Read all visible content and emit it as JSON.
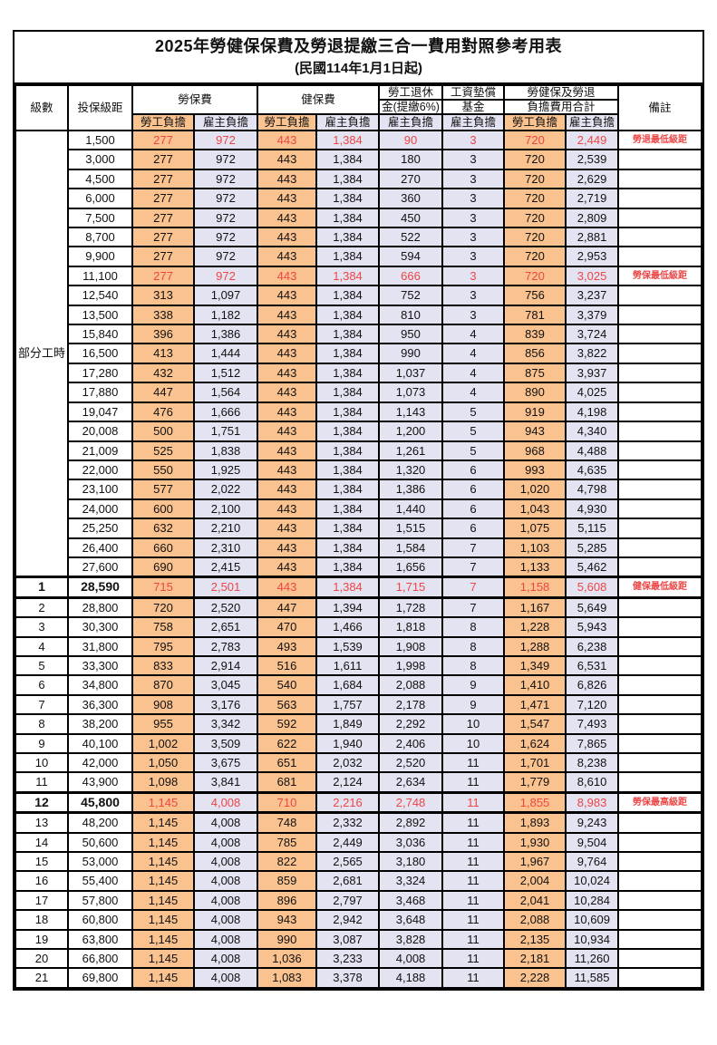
{
  "title": "2025年勞健保保費及勞退提繳三合一費用對照參考用表",
  "subtitle": "(民國114年1月1日起)",
  "colors": {
    "employee_bg": "#F9C28E",
    "employer_bg": "#E4E3F2",
    "alert_red": "#EE4545",
    "border": "#000000"
  },
  "header": {
    "level": "級數",
    "bracket": "投保級距",
    "labor_insurance": "勞保費",
    "health_insurance": "健保費",
    "pension_line1": "勞工退休",
    "pension_line2": "金(提繳6%)",
    "wage_fund_line1": "工資墊償",
    "wage_fund_line2": "基金",
    "total_line1": "勞健保及勞退",
    "total_line2": "負擔費用合計",
    "remark": "備註",
    "employee": "勞工負擔",
    "employer": "雇主負擔"
  },
  "part_time": {
    "label": "部分工時",
    "rowspan": 23
  },
  "fee_columns": [
    "labor-employee",
    "labor-employer",
    "health-employee",
    "health-employer",
    "pension-employer",
    "wage-fund-employer",
    "total-employee",
    "total-employer"
  ],
  "rows": [
    {
      "level": "",
      "bracket": "1,500",
      "fees": [
        "277",
        "972",
        "443",
        "1,384",
        "90",
        "3",
        "720",
        "2,449"
      ],
      "remark": "勞退最低級距",
      "red": true
    },
    {
      "level": "",
      "bracket": "3,000",
      "fees": [
        "277",
        "972",
        "443",
        "1,384",
        "180",
        "3",
        "720",
        "2,539"
      ],
      "remark": ""
    },
    {
      "level": "",
      "bracket": "4,500",
      "fees": [
        "277",
        "972",
        "443",
        "1,384",
        "270",
        "3",
        "720",
        "2,629"
      ],
      "remark": ""
    },
    {
      "level": "",
      "bracket": "6,000",
      "fees": [
        "277",
        "972",
        "443",
        "1,384",
        "360",
        "3",
        "720",
        "2,719"
      ],
      "remark": ""
    },
    {
      "level": "",
      "bracket": "7,500",
      "fees": [
        "277",
        "972",
        "443",
        "1,384",
        "450",
        "3",
        "720",
        "2,809"
      ],
      "remark": ""
    },
    {
      "level": "",
      "bracket": "8,700",
      "fees": [
        "277",
        "972",
        "443",
        "1,384",
        "522",
        "3",
        "720",
        "2,881"
      ],
      "remark": ""
    },
    {
      "level": "",
      "bracket": "9,900",
      "fees": [
        "277",
        "972",
        "443",
        "1,384",
        "594",
        "3",
        "720",
        "2,953"
      ],
      "remark": ""
    },
    {
      "level": "",
      "bracket": "11,100",
      "fees": [
        "277",
        "972",
        "443",
        "1,384",
        "666",
        "3",
        "720",
        "3,025"
      ],
      "remark": "勞保最低級距",
      "red": true
    },
    {
      "level": "",
      "bracket": "12,540",
      "fees": [
        "313",
        "1,097",
        "443",
        "1,384",
        "752",
        "3",
        "756",
        "3,237"
      ],
      "remark": ""
    },
    {
      "level": "",
      "bracket": "13,500",
      "fees": [
        "338",
        "1,182",
        "443",
        "1,384",
        "810",
        "3",
        "781",
        "3,379"
      ],
      "remark": ""
    },
    {
      "level": "",
      "bracket": "15,840",
      "fees": [
        "396",
        "1,386",
        "443",
        "1,384",
        "950",
        "4",
        "839",
        "3,724"
      ],
      "remark": ""
    },
    {
      "level": "",
      "bracket": "16,500",
      "fees": [
        "413",
        "1,444",
        "443",
        "1,384",
        "990",
        "4",
        "856",
        "3,822"
      ],
      "remark": ""
    },
    {
      "level": "",
      "bracket": "17,280",
      "fees": [
        "432",
        "1,512",
        "443",
        "1,384",
        "1,037",
        "4",
        "875",
        "3,937"
      ],
      "remark": ""
    },
    {
      "level": "",
      "bracket": "17,880",
      "fees": [
        "447",
        "1,564",
        "443",
        "1,384",
        "1,073",
        "4",
        "890",
        "4,025"
      ],
      "remark": ""
    },
    {
      "level": "",
      "bracket": "19,047",
      "fees": [
        "476",
        "1,666",
        "443",
        "1,384",
        "1,143",
        "5",
        "919",
        "4,198"
      ],
      "remark": ""
    },
    {
      "level": "",
      "bracket": "20,008",
      "fees": [
        "500",
        "1,751",
        "443",
        "1,384",
        "1,200",
        "5",
        "943",
        "4,340"
      ],
      "remark": ""
    },
    {
      "level": "",
      "bracket": "21,009",
      "fees": [
        "525",
        "1,838",
        "443",
        "1,384",
        "1,261",
        "5",
        "968",
        "4,488"
      ],
      "remark": ""
    },
    {
      "level": "",
      "bracket": "22,000",
      "fees": [
        "550",
        "1,925",
        "443",
        "1,384",
        "1,320",
        "6",
        "993",
        "4,635"
      ],
      "remark": ""
    },
    {
      "level": "",
      "bracket": "23,100",
      "fees": [
        "577",
        "2,022",
        "443",
        "1,384",
        "1,386",
        "6",
        "1,020",
        "4,798"
      ],
      "remark": ""
    },
    {
      "level": "",
      "bracket": "24,000",
      "fees": [
        "600",
        "2,100",
        "443",
        "1,384",
        "1,440",
        "6",
        "1,043",
        "4,930"
      ],
      "remark": ""
    },
    {
      "level": "",
      "bracket": "25,250",
      "fees": [
        "632",
        "2,210",
        "443",
        "1,384",
        "1,515",
        "6",
        "1,075",
        "5,115"
      ],
      "remark": ""
    },
    {
      "level": "",
      "bracket": "26,400",
      "fees": [
        "660",
        "2,310",
        "443",
        "1,384",
        "1,584",
        "7",
        "1,103",
        "5,285"
      ],
      "remark": ""
    },
    {
      "level": "",
      "bracket": "27,600",
      "fees": [
        "690",
        "2,415",
        "443",
        "1,384",
        "1,656",
        "7",
        "1,133",
        "5,462"
      ],
      "remark": ""
    },
    {
      "level": "1",
      "bracket": "28,590",
      "fees": [
        "715",
        "2,501",
        "443",
        "1,384",
        "1,715",
        "7",
        "1,158",
        "5,608"
      ],
      "remark": "健保最低級距",
      "red": true,
      "key": true
    },
    {
      "level": "2",
      "bracket": "28,800",
      "fees": [
        "720",
        "2,520",
        "447",
        "1,394",
        "1,728",
        "7",
        "1,167",
        "5,649"
      ],
      "remark": ""
    },
    {
      "level": "3",
      "bracket": "30,300",
      "fees": [
        "758",
        "2,651",
        "470",
        "1,466",
        "1,818",
        "8",
        "1,228",
        "5,943"
      ],
      "remark": ""
    },
    {
      "level": "4",
      "bracket": "31,800",
      "fees": [
        "795",
        "2,783",
        "493",
        "1,539",
        "1,908",
        "8",
        "1,288",
        "6,238"
      ],
      "remark": ""
    },
    {
      "level": "5",
      "bracket": "33,300",
      "fees": [
        "833",
        "2,914",
        "516",
        "1,611",
        "1,998",
        "8",
        "1,349",
        "6,531"
      ],
      "remark": ""
    },
    {
      "level": "6",
      "bracket": "34,800",
      "fees": [
        "870",
        "3,045",
        "540",
        "1,684",
        "2,088",
        "9",
        "1,410",
        "6,826"
      ],
      "remark": ""
    },
    {
      "level": "7",
      "bracket": "36,300",
      "fees": [
        "908",
        "3,176",
        "563",
        "1,757",
        "2,178",
        "9",
        "1,471",
        "7,120"
      ],
      "remark": ""
    },
    {
      "level": "8",
      "bracket": "38,200",
      "fees": [
        "955",
        "3,342",
        "592",
        "1,849",
        "2,292",
        "10",
        "1,547",
        "7,493"
      ],
      "remark": ""
    },
    {
      "level": "9",
      "bracket": "40,100",
      "fees": [
        "1,002",
        "3,509",
        "622",
        "1,940",
        "2,406",
        "10",
        "1,624",
        "7,865"
      ],
      "remark": ""
    },
    {
      "level": "10",
      "bracket": "42,000",
      "fees": [
        "1,050",
        "3,675",
        "651",
        "2,032",
        "2,520",
        "11",
        "1,701",
        "8,238"
      ],
      "remark": ""
    },
    {
      "level": "11",
      "bracket": "43,900",
      "fees": [
        "1,098",
        "3,841",
        "681",
        "2,124",
        "2,634",
        "11",
        "1,779",
        "8,610"
      ],
      "remark": ""
    },
    {
      "level": "12",
      "bracket": "45,800",
      "fees": [
        "1,145",
        "4,008",
        "710",
        "2,216",
        "2,748",
        "11",
        "1,855",
        "8,983"
      ],
      "remark": "勞保最高級距",
      "red": true,
      "key": true
    },
    {
      "level": "13",
      "bracket": "48,200",
      "fees": [
        "1,145",
        "4,008",
        "748",
        "2,332",
        "2,892",
        "11",
        "1,893",
        "9,243"
      ],
      "remark": ""
    },
    {
      "level": "14",
      "bracket": "50,600",
      "fees": [
        "1,145",
        "4,008",
        "785",
        "2,449",
        "3,036",
        "11",
        "1,930",
        "9,504"
      ],
      "remark": ""
    },
    {
      "level": "15",
      "bracket": "53,000",
      "fees": [
        "1,145",
        "4,008",
        "822",
        "2,565",
        "3,180",
        "11",
        "1,967",
        "9,764"
      ],
      "remark": ""
    },
    {
      "level": "16",
      "bracket": "55,400",
      "fees": [
        "1,145",
        "4,008",
        "859",
        "2,681",
        "3,324",
        "11",
        "2,004",
        "10,024"
      ],
      "remark": ""
    },
    {
      "level": "17",
      "bracket": "57,800",
      "fees": [
        "1,145",
        "4,008",
        "896",
        "2,797",
        "3,468",
        "11",
        "2,041",
        "10,284"
      ],
      "remark": ""
    },
    {
      "level": "18",
      "bracket": "60,800",
      "fees": [
        "1,145",
        "4,008",
        "943",
        "2,942",
        "3,648",
        "11",
        "2,088",
        "10,609"
      ],
      "remark": ""
    },
    {
      "level": "19",
      "bracket": "63,800",
      "fees": [
        "1,145",
        "4,008",
        "990",
        "3,087",
        "3,828",
        "11",
        "2,135",
        "10,934"
      ],
      "remark": ""
    },
    {
      "level": "20",
      "bracket": "66,800",
      "fees": [
        "1,145",
        "4,008",
        "1,036",
        "3,233",
        "4,008",
        "11",
        "2,181",
        "11,260"
      ],
      "remark": ""
    },
    {
      "level": "21",
      "bracket": "69,800",
      "fees": [
        "1,145",
        "4,008",
        "1,083",
        "3,378",
        "4,188",
        "11",
        "2,228",
        "11,585"
      ],
      "remark": ""
    }
  ]
}
